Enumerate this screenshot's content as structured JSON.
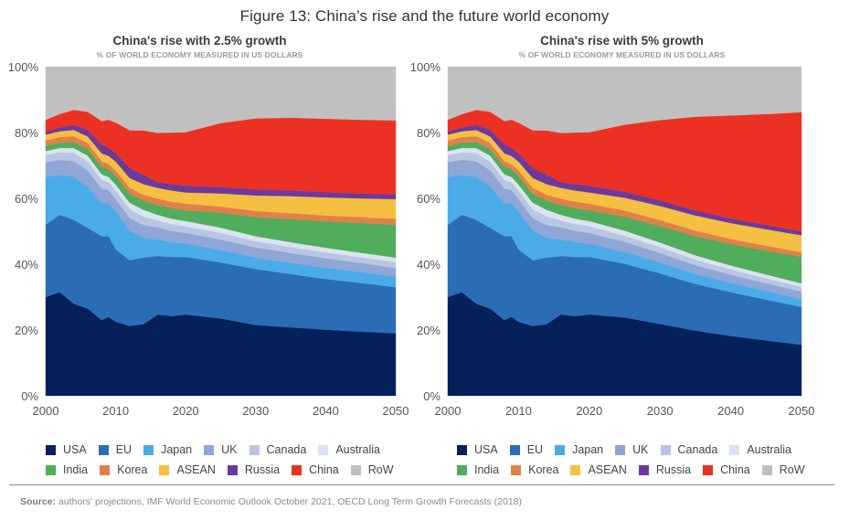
{
  "figure": {
    "title": "Figure 13: China’s rise and the future world economy",
    "source_label": "Source:",
    "source_text": " authors' projections, IMF World Economic Outlook October 2021, OECD Long Term Growth Forecasts (2018)"
  },
  "chart_data": [
    {
      "type": "area",
      "stacked": true,
      "title": "China's rise with 2.5% growth",
      "subtitle": "% OF WORLD ECONOMY MEASURED IN US DOLLARS",
      "xlabel": "",
      "ylabel": "",
      "xlim": [
        2000,
        2050
      ],
      "ylim": [
        0,
        100
      ],
      "x_ticks": [
        "2000",
        "2010",
        "2020",
        "2030",
        "2040",
        "2050"
      ],
      "y_ticks": [
        "0%",
        "20%",
        "40%",
        "60%",
        "80%",
        "100%"
      ],
      "grid": false,
      "legend_position": "bottom",
      "x": [
        2000,
        2002,
        2004,
        2006,
        2008,
        2009,
        2010,
        2012,
        2014,
        2016,
        2018,
        2020,
        2025,
        2030,
        2035,
        2040,
        2045,
        2050
      ],
      "series": [
        {
          "name": "USA",
          "color": "#05205a",
          "values": [
            30.0,
            31.5,
            28.0,
            26.5,
            23.0,
            24.0,
            22.5,
            21.2,
            21.8,
            24.7,
            24.2,
            24.7,
            23.5,
            21.5,
            20.8,
            20.1,
            19.5,
            19.0
          ]
        },
        {
          "name": "EU",
          "color": "#2b6db5",
          "values": [
            22.0,
            23.5,
            25.5,
            24.5,
            25.5,
            24.5,
            22.0,
            20.0,
            20.2,
            17.8,
            18.0,
            17.5,
            17.0,
            17.0,
            16.2,
            15.4,
            14.8,
            14.0
          ]
        },
        {
          "name": "Japan",
          "color": "#4aabe8",
          "values": [
            14.5,
            12.0,
            13.0,
            12.5,
            10.0,
            10.0,
            11.5,
            9.0,
            6.0,
            5.0,
            4.5,
            4.0,
            3.8,
            3.5,
            3.4,
            3.4,
            3.3,
            3.2
          ]
        },
        {
          "name": "UK",
          "color": "#8fa6d6",
          "values": [
            4.5,
            4.7,
            4.8,
            5.0,
            4.5,
            4.0,
            3.8,
            3.8,
            3.9,
            3.7,
            3.4,
            3.3,
            3.2,
            3.1,
            3.0,
            2.9,
            2.8,
            2.7
          ]
        },
        {
          "name": "Canada",
          "color": "#b8c6e3",
          "values": [
            2.2,
            2.3,
            2.5,
            2.7,
            2.6,
            2.4,
            2.6,
            2.7,
            2.6,
            2.1,
            2.1,
            2.0,
            2.0,
            1.9,
            1.8,
            1.8,
            1.7,
            1.7
          ]
        },
        {
          "name": "Australia",
          "color": "#dbe3f1",
          "values": [
            1.2,
            1.3,
            1.5,
            1.8,
            1.7,
            1.6,
            1.8,
            2.0,
            2.0,
            1.7,
            1.6,
            1.6,
            1.6,
            1.5,
            1.5,
            1.4,
            1.4,
            1.4
          ]
        },
        {
          "name": "India",
          "color": "#4fad5b",
          "values": [
            1.5,
            1.6,
            1.8,
            2.0,
            2.3,
            2.4,
            2.6,
            2.7,
            2.8,
            3.0,
            3.2,
            3.3,
            4.5,
            5.8,
            7.0,
            8.0,
            9.0,
            10.0
          ]
        },
        {
          "name": "Korea",
          "color": "#e0814a",
          "values": [
            1.7,
            1.7,
            1.8,
            1.8,
            1.7,
            1.5,
            1.7,
            1.8,
            1.8,
            1.9,
            2.0,
            2.0,
            1.9,
            1.9,
            1.8,
            1.8,
            1.8,
            1.8
          ]
        },
        {
          "name": "ASEAN",
          "color": "#f5bf42",
          "values": [
            1.8,
            1.8,
            1.9,
            2.0,
            2.4,
            2.5,
            2.7,
            3.0,
            3.2,
            3.3,
            3.4,
            3.4,
            4.0,
            4.7,
            5.2,
            5.5,
            5.7,
            6.0
          ]
        },
        {
          "name": "Russia",
          "color": "#6a3a9e",
          "values": [
            0.9,
            1.1,
            1.5,
            2.0,
            2.7,
            2.4,
            2.5,
            3.0,
            2.8,
            1.7,
            1.9,
            2.0,
            1.9,
            1.8,
            1.7,
            1.6,
            1.5,
            1.4
          ]
        },
        {
          "name": "China",
          "color": "#ec3124",
          "values": [
            3.6,
            4.1,
            4.6,
            5.5,
            7.1,
            8.6,
            9.3,
            11.5,
            13.5,
            15.0,
            15.7,
            16.3,
            19.5,
            21.6,
            22.1,
            22.3,
            22.4,
            22.5
          ]
        },
        {
          "name": "RoW",
          "color": "#c0c0c0",
          "values": [
            16.1,
            14.4,
            13.1,
            13.7,
            12.5,
            15.5,
            17.0,
            19.5,
            19.4,
            20.1,
            20.0,
            19.9,
            17.1,
            16.7,
            17.5,
            17.8,
            17.9,
            18.2
          ]
        }
      ]
    },
    {
      "type": "area",
      "stacked": true,
      "title": "China's rise with 5% growth",
      "subtitle": "% OF WORLD ECONOMY MEASURED IN US DOLLARS",
      "xlabel": "",
      "ylabel": "",
      "xlim": [
        2000,
        2050
      ],
      "ylim": [
        0,
        100
      ],
      "x_ticks": [
        "2000",
        "2010",
        "2020",
        "2030",
        "2040",
        "2050"
      ],
      "y_ticks": [
        "0%",
        "20%",
        "40%",
        "60%",
        "80%",
        "100%"
      ],
      "grid": false,
      "legend_position": "bottom",
      "x": [
        2000,
        2002,
        2004,
        2006,
        2008,
        2009,
        2010,
        2012,
        2014,
        2016,
        2018,
        2020,
        2025,
        2030,
        2035,
        2040,
        2045,
        2050
      ],
      "series": [
        {
          "name": "USA",
          "color": "#05205a",
          "values": [
            30.0,
            31.5,
            28.0,
            26.5,
            23.0,
            24.0,
            22.5,
            21.2,
            21.8,
            24.7,
            24.2,
            24.7,
            23.8,
            21.8,
            19.8,
            18.2,
            16.8,
            15.5
          ]
        },
        {
          "name": "EU",
          "color": "#2b6db5",
          "values": [
            22.0,
            23.5,
            25.5,
            24.5,
            25.5,
            24.5,
            22.0,
            20.0,
            20.2,
            17.8,
            18.0,
            17.5,
            16.3,
            15.4,
            14.2,
            13.3,
            12.4,
            11.5
          ]
        },
        {
          "name": "Japan",
          "color": "#4aabe8",
          "values": [
            14.5,
            12.0,
            13.0,
            12.5,
            10.0,
            10.0,
            11.5,
            9.0,
            6.0,
            5.0,
            4.5,
            4.0,
            3.6,
            3.3,
            3.0,
            2.8,
            2.6,
            2.4
          ]
        },
        {
          "name": "UK",
          "color": "#8fa6d6",
          "values": [
            4.5,
            4.7,
            4.8,
            5.0,
            4.5,
            4.0,
            3.8,
            3.8,
            3.9,
            3.7,
            3.4,
            3.3,
            3.1,
            2.9,
            2.7,
            2.5,
            2.4,
            2.3
          ]
        },
        {
          "name": "Canada",
          "color": "#b8c6e3",
          "values": [
            2.2,
            2.3,
            2.5,
            2.7,
            2.6,
            2.4,
            2.6,
            2.7,
            2.6,
            2.1,
            2.1,
            2.0,
            1.9,
            1.8,
            1.7,
            1.6,
            1.5,
            1.4
          ]
        },
        {
          "name": "Australia",
          "color": "#dbe3f1",
          "values": [
            1.2,
            1.3,
            1.5,
            1.8,
            1.7,
            1.6,
            1.8,
            2.0,
            2.0,
            1.7,
            1.6,
            1.6,
            1.5,
            1.4,
            1.3,
            1.2,
            1.2,
            1.1
          ]
        },
        {
          "name": "India",
          "color": "#4fad5b",
          "values": [
            1.5,
            1.6,
            1.8,
            2.0,
            2.3,
            2.4,
            2.6,
            2.7,
            2.8,
            3.0,
            3.2,
            3.3,
            4.2,
            5.0,
            5.8,
            6.5,
            7.2,
            8.0
          ]
        },
        {
          "name": "Korea",
          "color": "#e0814a",
          "values": [
            1.7,
            1.7,
            1.8,
            1.8,
            1.7,
            1.5,
            1.7,
            1.8,
            1.8,
            1.9,
            2.0,
            2.0,
            1.9,
            1.8,
            1.7,
            1.6,
            1.5,
            1.4
          ]
        },
        {
          "name": "ASEAN",
          "color": "#f5bf42",
          "values": [
            1.8,
            1.8,
            1.9,
            2.0,
            2.4,
            2.5,
            2.7,
            3.0,
            3.2,
            3.3,
            3.4,
            3.4,
            3.9,
            4.3,
            4.6,
            4.8,
            5.0,
            5.2
          ]
        },
        {
          "name": "Russia",
          "color": "#6a3a9e",
          "values": [
            0.9,
            1.1,
            1.5,
            2.0,
            2.7,
            2.4,
            2.5,
            3.0,
            2.8,
            1.7,
            1.9,
            2.0,
            1.8,
            1.6,
            1.5,
            1.4,
            1.3,
            1.2
          ]
        },
        {
          "name": "China",
          "color": "#ec3124",
          "values": [
            3.6,
            4.1,
            4.6,
            5.5,
            7.1,
            8.6,
            9.3,
            11.5,
            13.5,
            15.0,
            15.7,
            16.3,
            20.4,
            24.5,
            28.5,
            31.3,
            33.7,
            36.2
          ]
        },
        {
          "name": "RoW",
          "color": "#c0c0c0",
          "values": [
            16.1,
            14.4,
            13.1,
            13.7,
            12.5,
            15.5,
            17.0,
            19.5,
            19.4,
            20.1,
            20.0,
            19.9,
            17.6,
            16.2,
            15.2,
            15.0,
            14.6,
            14.2
          ]
        }
      ]
    }
  ],
  "legend": {
    "rows": [
      [
        {
          "label": "USA",
          "color": "#05205a"
        },
        {
          "label": "EU",
          "color": "#2b6db5"
        },
        {
          "label": "Japan",
          "color": "#4aabe8"
        },
        {
          "label": "UK",
          "color": "#8fa6d6"
        },
        {
          "label": "Canada",
          "color": "#b8c6e3"
        },
        {
          "label": "Australia",
          "color": "#dbe3f1"
        }
      ],
      [
        {
          "label": "India",
          "color": "#4fad5b"
        },
        {
          "label": "Korea",
          "color": "#e0814a"
        },
        {
          "label": "ASEAN",
          "color": "#f5bf42"
        },
        {
          "label": "Russia",
          "color": "#6a3a9e"
        },
        {
          "label": "China",
          "color": "#ec3124"
        },
        {
          "label": "RoW",
          "color": "#c0c0c0"
        }
      ]
    ]
  }
}
